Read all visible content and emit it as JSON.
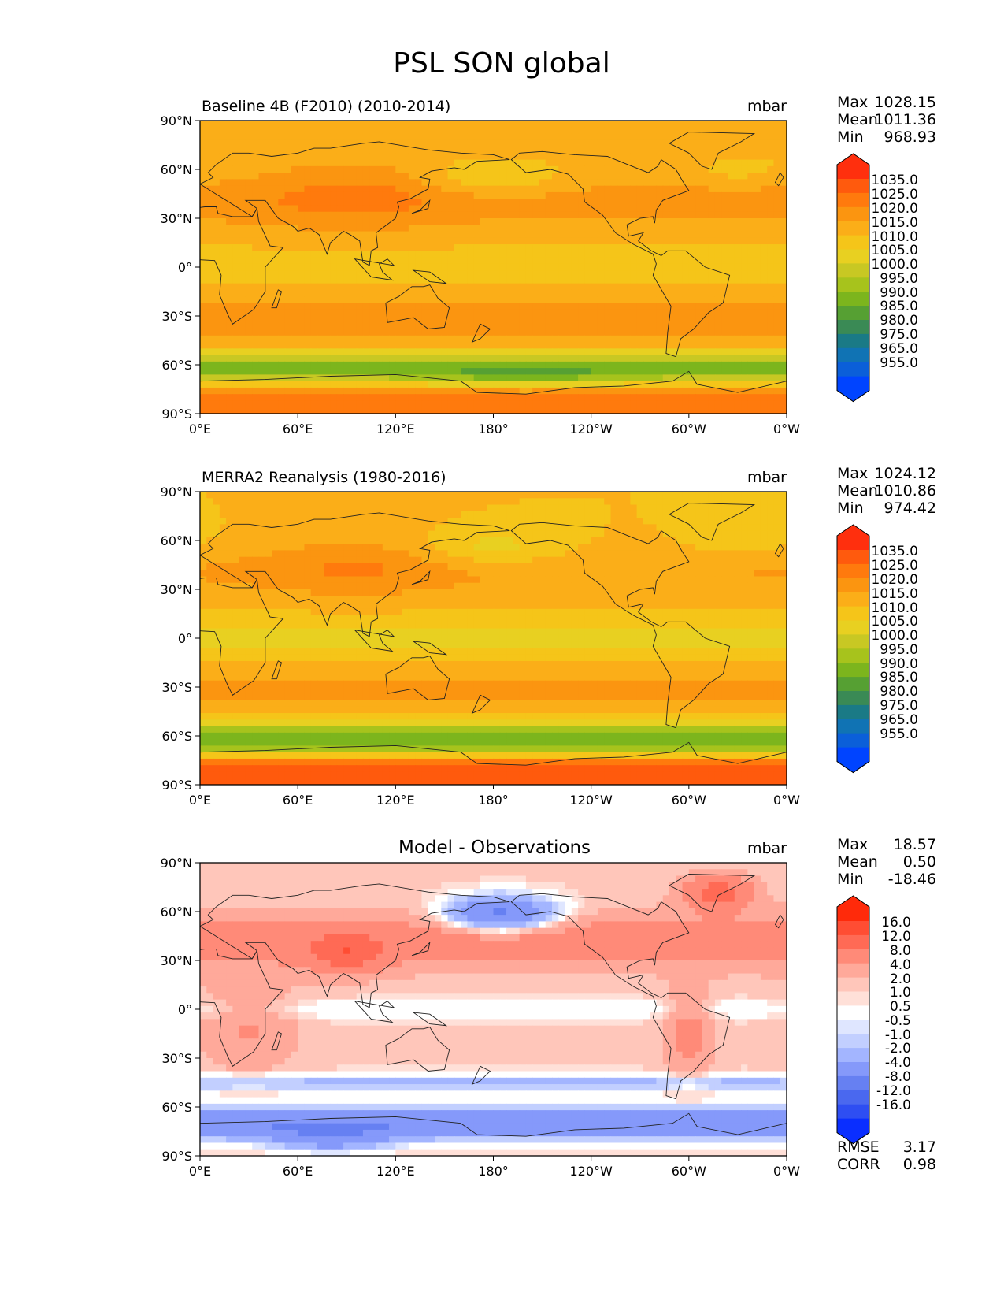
{
  "figure": {
    "title": "PSL SON global"
  },
  "chart_data": [
    {
      "type": "heatmap",
      "title": "Baseline 4B (F2010) (2010-2014)",
      "units": "mbar",
      "stats": [
        {
          "label": "Max",
          "value": "1028.15"
        },
        {
          "label": "Mean",
          "value": "1011.36"
        },
        {
          "label": "Min",
          "value": "968.93"
        }
      ],
      "x_ticks": [
        "0°E",
        "60°E",
        "120°E",
        "180°",
        "120°W",
        "60°W",
        "0°W"
      ],
      "y_ticks": [
        "90°N",
        "60°N",
        "30°N",
        "0°",
        "30°S",
        "60°S",
        "90°S"
      ],
      "xlim": [
        0,
        360
      ],
      "ylim": [
        -90,
        90
      ],
      "colorbar": {
        "levels": [
          "1035.0",
          "1025.0",
          "1020.0",
          "1015.0",
          "1010.0",
          "1005.0",
          "1000.0",
          "995.0",
          "990.0",
          "985.0",
          "980.0",
          "975.0",
          "965.0",
          "955.0"
        ],
        "colors": [
          "#ff2f0d",
          "#ff5a0d",
          "#ff7a0d",
          "#fb9510",
          "#fbae18",
          "#f5c519",
          "#e8d021",
          "#c8c823",
          "#a7c31c",
          "#7cb51d",
          "#56a033",
          "#3a8a55",
          "#1a7a86",
          "#1073b4",
          "#0b5fd9",
          "#0044ff"
        ],
        "field": "psl"
      }
    },
    {
      "type": "heatmap",
      "title": "MERRA2 Reanalysis (1980-2016)",
      "units": "mbar",
      "stats": [
        {
          "label": "Max",
          "value": "1024.12"
        },
        {
          "label": "Mean",
          "value": "1010.86"
        },
        {
          "label": "Min",
          "value": "974.42"
        }
      ],
      "x_ticks": [
        "0°E",
        "60°E",
        "120°E",
        "180°",
        "120°W",
        "60°W",
        "0°W"
      ],
      "y_ticks": [
        "90°N",
        "60°N",
        "30°N",
        "0°",
        "30°S",
        "60°S",
        "90°S"
      ],
      "xlim": [
        0,
        360
      ],
      "ylim": [
        -90,
        90
      ],
      "colorbar": {
        "levels": [
          "1035.0",
          "1025.0",
          "1020.0",
          "1015.0",
          "1010.0",
          "1005.0",
          "1000.0",
          "995.0",
          "990.0",
          "985.0",
          "980.0",
          "975.0",
          "965.0",
          "955.0"
        ],
        "colors": [
          "#ff2f0d",
          "#ff5a0d",
          "#ff7a0d",
          "#fb9510",
          "#fbae18",
          "#f5c519",
          "#e8d021",
          "#c8c823",
          "#a7c31c",
          "#7cb51d",
          "#56a033",
          "#3a8a55",
          "#1a7a86",
          "#1073b4",
          "#0b5fd9",
          "#0044ff"
        ],
        "field": "psl_obs"
      }
    },
    {
      "type": "heatmap",
      "title": "Model - Observations",
      "units": "mbar",
      "stats": [
        {
          "label": "Max",
          "value": "18.57"
        },
        {
          "label": "Mean",
          "value": "0.50"
        },
        {
          "label": "Min",
          "value": "-18.46"
        }
      ],
      "extra_stats": [
        {
          "label": "RMSE",
          "value": "3.17"
        },
        {
          "label": "CORR",
          "value": "0.98"
        }
      ],
      "x_ticks": [
        "0°E",
        "60°E",
        "120°E",
        "180°",
        "120°W",
        "60°W",
        "0°W"
      ],
      "y_ticks": [
        "90°N",
        "60°N",
        "30°N",
        "0°",
        "30°S",
        "60°S",
        "90°S"
      ],
      "xlim": [
        0,
        360
      ],
      "ylim": [
        -90,
        90
      ],
      "colorbar": {
        "levels": [
          "16.0",
          "12.0",
          "8.0",
          "4.0",
          "2.0",
          "1.0",
          "0.5",
          "-0.5",
          "-1.0",
          "-2.0",
          "-4.0",
          "-8.0",
          "-12.0",
          "-16.0"
        ],
        "colors": [
          "#ff2a0a",
          "#ff4d33",
          "#ff6a55",
          "#ff8a78",
          "#ffa99a",
          "#ffc6ba",
          "#ffe0d8",
          "#ffffff",
          "#dfe6ff",
          "#c2cfff",
          "#a3b5ff",
          "#8599fa",
          "#6680f2",
          "#4a68ef",
          "#2e4ef2",
          "#0a2eff"
        ],
        "field": "diff"
      }
    }
  ]
}
